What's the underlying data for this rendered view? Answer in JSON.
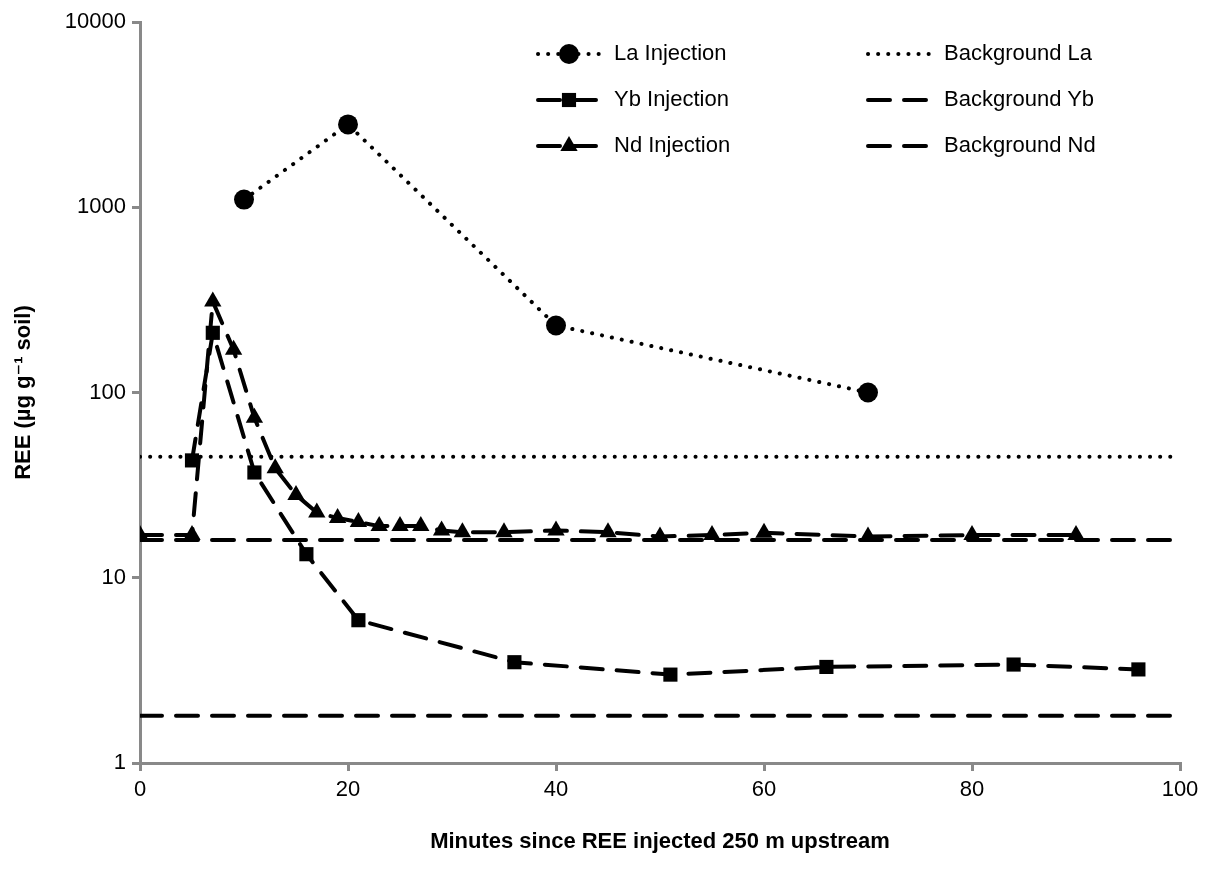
{
  "chart_data": {
    "type": "line",
    "xlabel": "Minutes since REE injected 250 m upstream",
    "ylabel": "REE (µg g⁻¹ soil)",
    "xlim": [
      0,
      100
    ],
    "xticks": [
      0,
      20,
      40,
      60,
      80,
      100
    ],
    "ylim": [
      1,
      10000
    ],
    "yticks": [
      1,
      10,
      100,
      1000,
      10000
    ],
    "log": "y",
    "legend": "top right",
    "series": [
      {
        "name": "La Injection",
        "color": "#000000",
        "marker": "circle",
        "line_style": "dotted",
        "x": [
          10,
          20,
          40,
          70
        ],
        "values": [
          1100,
          2800,
          230,
          100
        ]
      },
      {
        "name": "Yb Injection",
        "color": "#000000",
        "marker": "square",
        "line_style": "dashed",
        "x": [
          5,
          7,
          11,
          16,
          21,
          36,
          51,
          66,
          84,
          96
        ],
        "values": [
          43,
          210,
          37,
          13.4,
          5.9,
          3.5,
          3.0,
          3.3,
          3.4,
          3.2
        ]
      },
      {
        "name": "Nd Injection",
        "color": "#000000",
        "marker": "triangle",
        "line_style": "dashed",
        "x": [
          0,
          5,
          7,
          9,
          11,
          13,
          15,
          17,
          19,
          21,
          23,
          25,
          27,
          29,
          31,
          35,
          40,
          45,
          50,
          55,
          60,
          70,
          80,
          90
        ],
        "values": [
          17,
          17,
          310,
          170,
          73,
          39,
          28,
          22.5,
          21,
          20,
          19,
          19,
          19,
          18,
          17.6,
          17.6,
          18,
          17.6,
          16.7,
          17,
          17.5,
          16.7,
          17,
          17
        ]
      },
      {
        "name": "Background La",
        "color": "#000000",
        "marker": "none",
        "line_style": "dotted",
        "x": [
          0,
          100
        ],
        "values": [
          45,
          45
        ]
      },
      {
        "name": "Background Yb",
        "color": "#000000",
        "marker": "none",
        "line_style": "dashed",
        "x": [
          0,
          100
        ],
        "values": [
          1.8,
          1.8
        ]
      },
      {
        "name": "Background Nd",
        "color": "#000000",
        "marker": "none",
        "line_style": "dashed",
        "x": [
          0,
          100
        ],
        "values": [
          16,
          16
        ]
      }
    ]
  }
}
